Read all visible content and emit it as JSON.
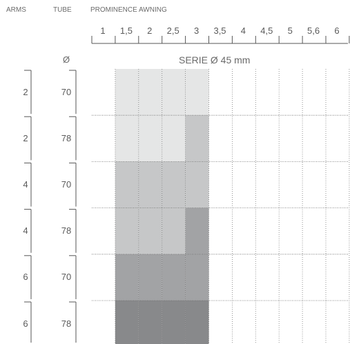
{
  "headers": {
    "arms": "ARMS",
    "tube": "TUBE",
    "prominence": "PROMINENCE AWNING"
  },
  "prominence_values": [
    "1",
    "1,5",
    "2",
    "2,5",
    "3",
    "3,5",
    "4",
    "4,5",
    "5",
    "5,6",
    "6"
  ],
  "diameter_symbol": "Ø",
  "series_label": "SERIE Ø 45 mm",
  "rows": [
    {
      "arms": "2",
      "tube": "70",
      "shades": [
        "",
        "light",
        "light",
        "light",
        "light"
      ]
    },
    {
      "arms": "2",
      "tube": "78",
      "shades": [
        "",
        "light",
        "light",
        "light",
        "mid"
      ]
    },
    {
      "arms": "4",
      "tube": "70",
      "shades": [
        "",
        "mid",
        "mid",
        "mid",
        "mid"
      ]
    },
    {
      "arms": "4",
      "tube": "78",
      "shades": [
        "",
        "mid",
        "mid",
        "mid",
        "dark"
      ]
    },
    {
      "arms": "6",
      "tube": "70",
      "shades": [
        "",
        "dark",
        "dark",
        "dark",
        "dark"
      ]
    },
    {
      "arms": "6",
      "tube": "78",
      "shades": [
        "",
        "darkest",
        "darkest",
        "darkest",
        "darkest"
      ]
    }
  ],
  "colors": {
    "light": "#e5e6e6",
    "mid": "#c6c7c8",
    "dark": "#a2a3a5",
    "darkest": "#88898b",
    "line": "#555555"
  }
}
